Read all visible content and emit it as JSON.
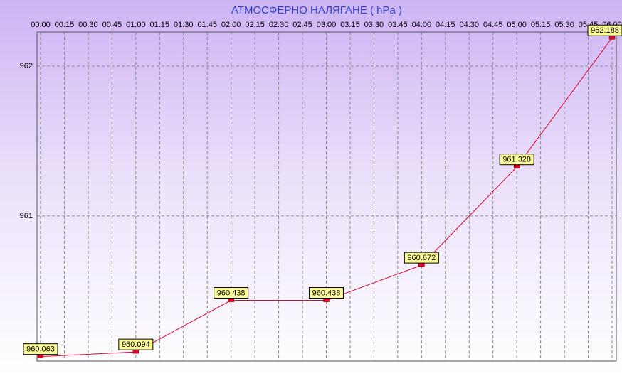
{
  "chart_data": {
    "type": "line",
    "title": "АТМОСФЕРНО НАЛЯГАНЕ  ( hPa )",
    "xticks": [
      "00:00",
      "00:15",
      "00:30",
      "00:45",
      "01:00",
      "01:15",
      "01:30",
      "01:45",
      "02:00",
      "02:15",
      "02:30",
      "02:45",
      "03:00",
      "03:15",
      "03:30",
      "03:45",
      "04:00",
      "04:15",
      "04:30",
      "04:45",
      "05:00",
      "05:15",
      "05:30",
      "05:45",
      "06:00"
    ],
    "x": [
      "00:00",
      "01:00",
      "02:00",
      "03:00",
      "04:00",
      "05:00",
      "06:00"
    ],
    "values": [
      960.063,
      960.094,
      960.438,
      960.438,
      960.672,
      961.328,
      962.188
    ],
    "color": "#e0002a",
    "ylim": [
      960.033,
      962.227
    ],
    "yticks": [
      961,
      962
    ],
    "grid": true
  }
}
